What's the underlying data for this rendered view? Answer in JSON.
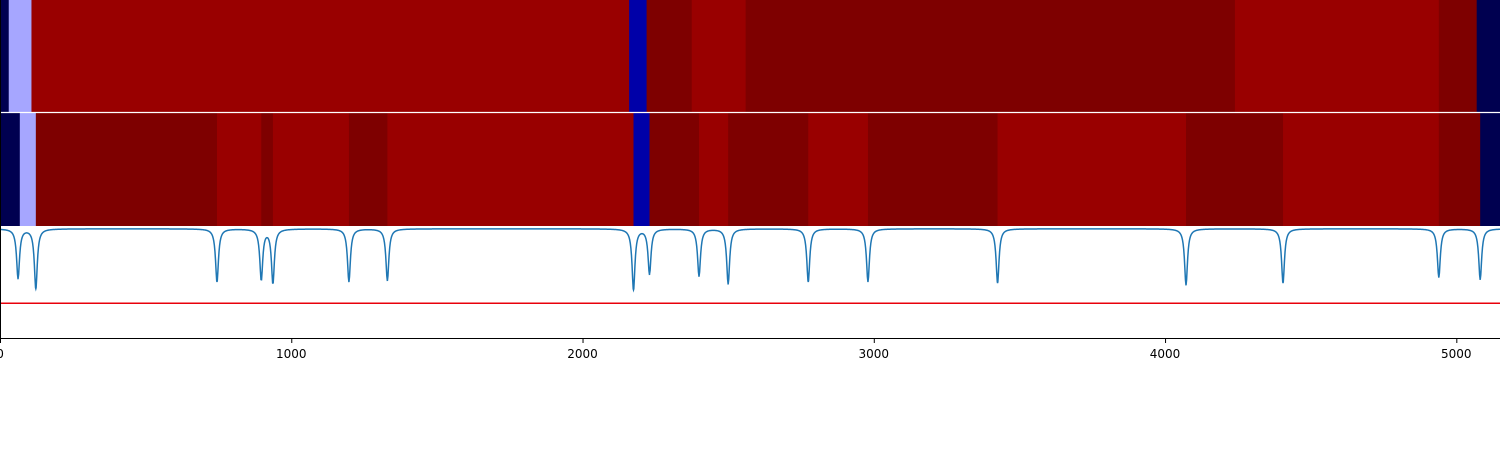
{
  "colors": {
    "seg_red": "#990000",
    "seg_darkred": "#7e0000",
    "seg_lightblue": "#a6a6ff",
    "seg_navy": "#000050",
    "seg_blue": "#0000a8",
    "line": "#1f77b4",
    "threshold": "#e8000b",
    "axis": "#000000"
  },
  "chart_data": [
    {
      "type": "heatmap",
      "xlim": [
        0,
        5150
      ],
      "row": "top",
      "segments": [
        {
          "start": 0,
          "end": 30,
          "color": "seg_navy"
        },
        {
          "start": 30,
          "end": 108,
          "color": "seg_lightblue"
        },
        {
          "start": 108,
          "end": 2160,
          "color": "seg_red"
        },
        {
          "start": 2160,
          "end": 2220,
          "color": "seg_blue"
        },
        {
          "start": 2220,
          "end": 2375,
          "color": "seg_darkred"
        },
        {
          "start": 2375,
          "end": 2560,
          "color": "seg_red"
        },
        {
          "start": 2560,
          "end": 4240,
          "color": "seg_darkred"
        },
        {
          "start": 4240,
          "end": 4940,
          "color": "seg_red"
        },
        {
          "start": 4940,
          "end": 5070,
          "color": "seg_darkred"
        },
        {
          "start": 5070,
          "end": 5150,
          "color": "seg_navy"
        }
      ]
    },
    {
      "type": "heatmap",
      "xlim": [
        0,
        5150
      ],
      "row": "middle",
      "segments": [
        {
          "start": 0,
          "end": 68,
          "color": "seg_navy"
        },
        {
          "start": 68,
          "end": 123,
          "color": "seg_lightblue"
        },
        {
          "start": 123,
          "end": 745,
          "color": "seg_darkred"
        },
        {
          "start": 745,
          "end": 897,
          "color": "seg_red"
        },
        {
          "start": 897,
          "end": 937,
          "color": "seg_darkred"
        },
        {
          "start": 937,
          "end": 1198,
          "color": "seg_red"
        },
        {
          "start": 1198,
          "end": 1330,
          "color": "seg_darkred"
        },
        {
          "start": 1330,
          "end": 2175,
          "color": "seg_red"
        },
        {
          "start": 2175,
          "end": 2230,
          "color": "seg_blue"
        },
        {
          "start": 2230,
          "end": 2400,
          "color": "seg_darkred"
        },
        {
          "start": 2400,
          "end": 2500,
          "color": "seg_red"
        },
        {
          "start": 2500,
          "end": 2775,
          "color": "seg_darkred"
        },
        {
          "start": 2775,
          "end": 2980,
          "color": "seg_red"
        },
        {
          "start": 2980,
          "end": 3425,
          "color": "seg_darkred"
        },
        {
          "start": 3425,
          "end": 4072,
          "color": "seg_red"
        },
        {
          "start": 4072,
          "end": 4405,
          "color": "seg_darkred"
        },
        {
          "start": 4405,
          "end": 4940,
          "color": "seg_red"
        },
        {
          "start": 4940,
          "end": 5082,
          "color": "seg_darkred"
        },
        {
          "start": 5082,
          "end": 5150,
          "color": "seg_navy"
        }
      ]
    },
    {
      "type": "line",
      "xlim": [
        0,
        5150
      ],
      "ylim": [
        0,
        1
      ],
      "baseline": 0.975,
      "threshold": 0.31,
      "dips": [
        {
          "x": 62,
          "y": 0.53
        },
        {
          "x": 123,
          "y": 0.44
        },
        {
          "x": 745,
          "y": 0.5
        },
        {
          "x": 897,
          "y": 0.52
        },
        {
          "x": 937,
          "y": 0.49
        },
        {
          "x": 1198,
          "y": 0.5
        },
        {
          "x": 1330,
          "y": 0.51
        },
        {
          "x": 2175,
          "y": 0.43
        },
        {
          "x": 2230,
          "y": 0.57
        },
        {
          "x": 2400,
          "y": 0.55
        },
        {
          "x": 2500,
          "y": 0.48
        },
        {
          "x": 2775,
          "y": 0.5
        },
        {
          "x": 2980,
          "y": 0.5
        },
        {
          "x": 3425,
          "y": 0.49
        },
        {
          "x": 4072,
          "y": 0.47
        },
        {
          "x": 4405,
          "y": 0.49
        },
        {
          "x": 4940,
          "y": 0.54
        },
        {
          "x": 5082,
          "y": 0.52
        }
      ],
      "xticks": [
        0,
        1000,
        2000,
        3000,
        4000,
        5000
      ],
      "xtick_labels": [
        "0",
        "1000",
        "2000",
        "3000",
        "4000",
        "5000"
      ]
    }
  ]
}
